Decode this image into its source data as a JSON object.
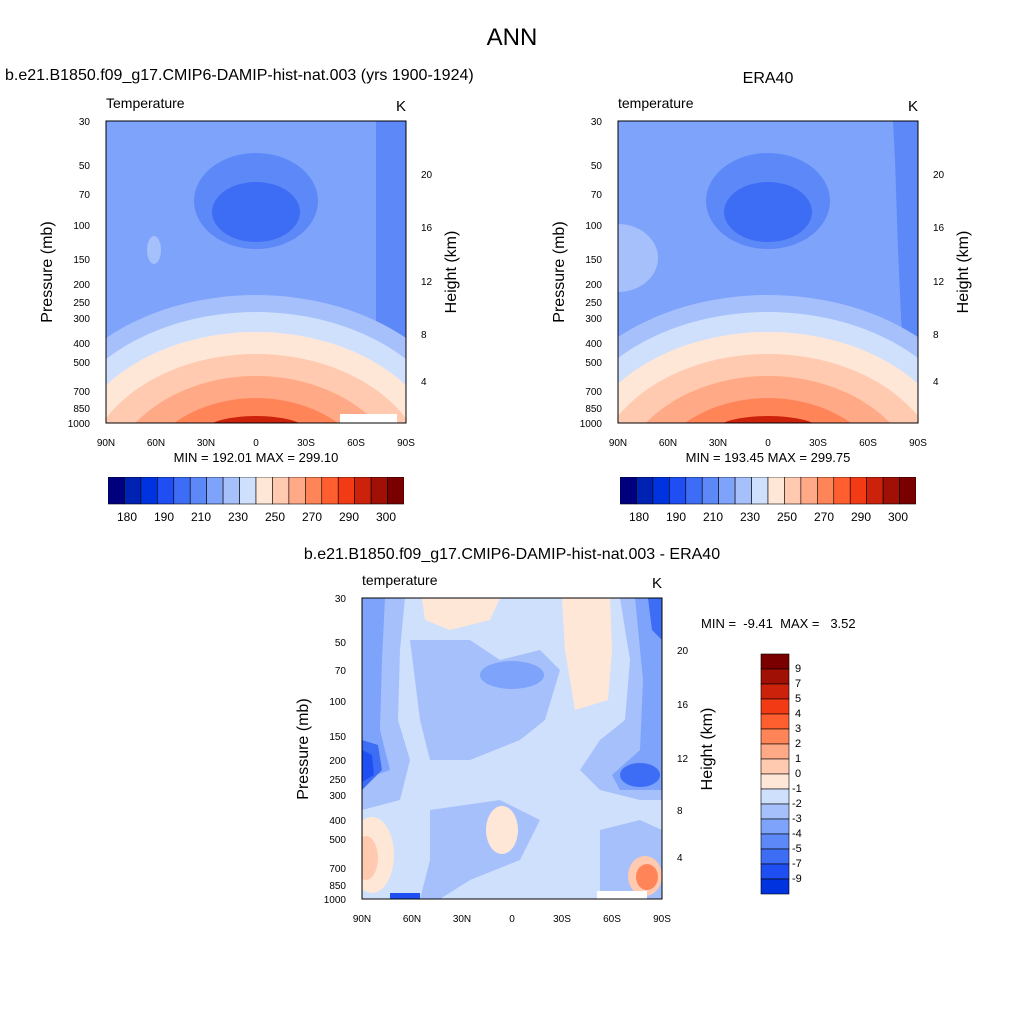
{
  "page_title": "ANN",
  "palette": {
    "blue": [
      "#00007f",
      "#0022b2",
      "#0033e0",
      "#1f4ff2",
      "#3d6cf5",
      "#5d89f8",
      "#7ea3fb",
      "#a6c0fc",
      "#cfe0fd"
    ],
    "red": [
      "#ffe7d8",
      "#ffcab0",
      "#ffa987",
      "#ff8559",
      "#ff5e2e",
      "#f23a14",
      "#cc210a",
      "#a11005",
      "#7a0000"
    ]
  },
  "chart_data": [
    {
      "type": "heatmap",
      "title": "b.e21.B1850.f09_g17.CMIP6-DAMIP-hist-nat.003 (yrs 1900-1924)",
      "subtitle_left": "Temperature",
      "subtitle_right": "K",
      "ylabel": "Pressure (mb)",
      "ylabel_right": "Height (km)",
      "x_ticks": [
        "90N",
        "60N",
        "30N",
        "0",
        "30S",
        "60S",
        "90S"
      ],
      "y_ticks": [
        "30",
        "50",
        "70",
        "100",
        "150",
        "200",
        "250",
        "300",
        "400",
        "500",
        "700",
        "850",
        "1000"
      ],
      "right_ticks": [
        "20",
        "16",
        "12",
        "8",
        "4"
      ],
      "stats": "MIN = 192.01  MAX = 299.10",
      "min": 192.01,
      "max": 299.1,
      "colorbar_labels": [
        "180",
        "190",
        "210",
        "230",
        "250",
        "270",
        "290",
        "300"
      ]
    },
    {
      "type": "heatmap",
      "title": "ERA40",
      "subtitle_left": "temperature",
      "subtitle_right": "K",
      "ylabel": "Pressure (mb)",
      "ylabel_right": "Height (km)",
      "x_ticks": [
        "90N",
        "60N",
        "30N",
        "0",
        "30S",
        "60S",
        "90S"
      ],
      "y_ticks": [
        "30",
        "50",
        "70",
        "100",
        "150",
        "200",
        "250",
        "300",
        "400",
        "500",
        "700",
        "850",
        "1000"
      ],
      "right_ticks": [
        "20",
        "16",
        "12",
        "8",
        "4"
      ],
      "stats": "MIN = 193.45  MAX = 299.75",
      "min": 193.45,
      "max": 299.75,
      "colorbar_labels": [
        "180",
        "190",
        "210",
        "230",
        "250",
        "270",
        "290",
        "300"
      ]
    },
    {
      "type": "heatmap",
      "title": "b.e21.B1850.f09_g17.CMIP6-DAMIP-hist-nat.003 - ERA40",
      "subtitle_left": "temperature",
      "subtitle_right": "K",
      "ylabel": "Pressure (mb)",
      "ylabel_right": "Height (km)",
      "x_ticks": [
        "90N",
        "60N",
        "30N",
        "0",
        "30S",
        "60S",
        "90S"
      ],
      "y_ticks": [
        "30",
        "50",
        "70",
        "100",
        "150",
        "200",
        "250",
        "300",
        "400",
        "500",
        "700",
        "850",
        "1000"
      ],
      "right_ticks": [
        "20",
        "16",
        "12",
        "8",
        "4"
      ],
      "stats": "MIN =  -9.41  MAX =   3.52",
      "min": -9.41,
      "max": 3.52,
      "colorbar_labels": [
        "9",
        "7",
        "5",
        "4",
        "3",
        "2",
        "1",
        "0",
        "-1",
        "-2",
        "-3",
        "-4",
        "-5",
        "-7",
        "-9"
      ]
    }
  ]
}
